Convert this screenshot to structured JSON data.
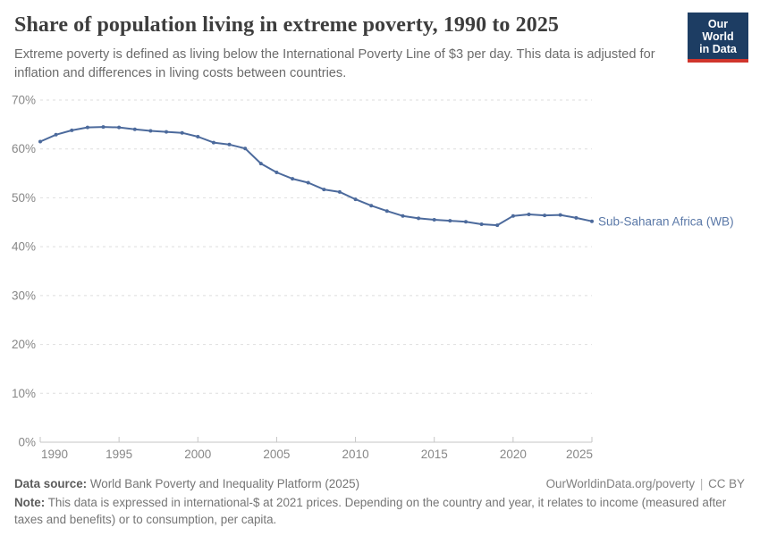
{
  "header": {
    "title": "Share of population living in extreme poverty, 1990 to 2025",
    "subtitle": "Extreme poverty is defined as living below the International Poverty Line of $3 per day. This data is adjusted for inflation and differences in living costs between countries.",
    "logo": {
      "line1": "Our World",
      "line2": "in Data"
    }
  },
  "chart_data": {
    "type": "line",
    "title": "Share of population living in extreme poverty, 1990 to 2025",
    "x": [
      1990,
      1991,
      1992,
      1993,
      1994,
      1995,
      1996,
      1997,
      1998,
      1999,
      2000,
      2001,
      2002,
      2003,
      2004,
      2005,
      2006,
      2007,
      2008,
      2009,
      2010,
      2011,
      2012,
      2013,
      2014,
      2015,
      2016,
      2017,
      2018,
      2019,
      2020,
      2021,
      2022,
      2023,
      2024,
      2025
    ],
    "series": [
      {
        "name": "Sub-Saharan Africa (WB)",
        "color": "#4c6a9c",
        "values": [
          61.5,
          62.9,
          63.8,
          64.4,
          64.5,
          64.4,
          64.0,
          63.7,
          63.5,
          63.3,
          62.5,
          61.3,
          60.9,
          60.1,
          57.0,
          55.2,
          53.9,
          53.1,
          51.7,
          51.2,
          49.7,
          48.4,
          47.3,
          46.3,
          45.8,
          45.5,
          45.3,
          45.1,
          44.6,
          44.4,
          46.3,
          46.6,
          46.4,
          46.5,
          45.9,
          45.2
        ]
      }
    ],
    "xlabel": "",
    "ylabel": "",
    "xlim": [
      1990,
      2025
    ],
    "ylim": [
      0,
      70
    ],
    "xticks": [
      1990,
      1995,
      2000,
      2005,
      2010,
      2015,
      2020,
      2025
    ],
    "ytick_values": [
      0,
      10,
      20,
      30,
      40,
      50,
      60,
      70
    ],
    "ytick_labels": [
      "0%",
      "10%",
      "20%",
      "30%",
      "40%",
      "50%",
      "60%",
      "70%"
    ],
    "grid": "horizontal-dashed",
    "legend_position": "end-of-line-label"
  },
  "footer": {
    "source_label": "Data source:",
    "source_text": "World Bank Poverty and Inequality Platform (2025)",
    "url": "OurWorldinData.org/poverty",
    "separator": "|",
    "license": "CC BY",
    "note_label": "Note:",
    "note_text": "This data is expressed in international-$ at 2021 prices. Depending on the country and year, it relates to income (measured after taxes and benefits) or to consumption, per capita."
  },
  "colors": {
    "line": "#4c6a9c",
    "series_label": "#5b79a8",
    "logo_background": "#1d3d63",
    "logo_accent": "#d0352c",
    "gridline": "#dedede",
    "axis": "#c6c6c6",
    "tick_label": "#878787"
  }
}
